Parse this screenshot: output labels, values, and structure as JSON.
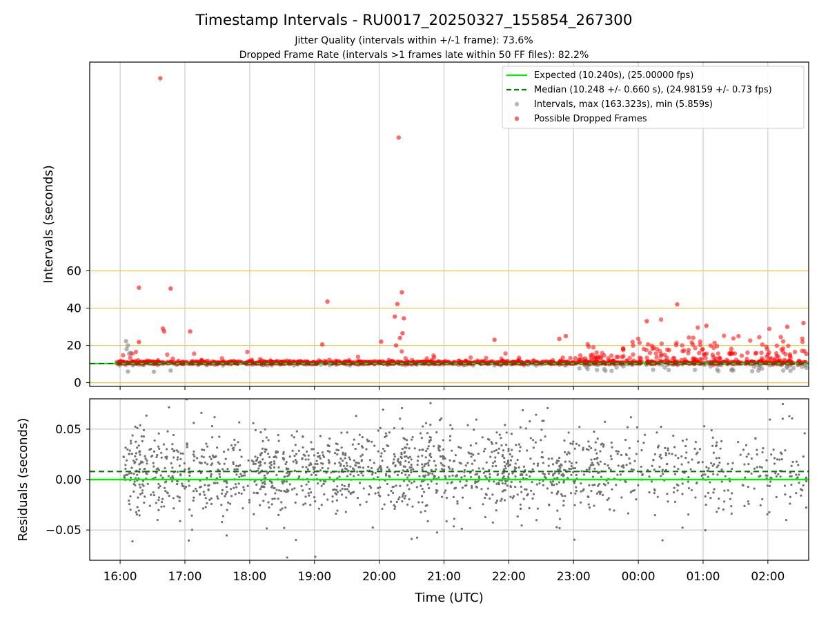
{
  "figure": {
    "title": "Timestamp Intervals - RU0017_20250327_155854_267300",
    "subtitle_1": "Jitter Quality (intervals within +/-1 frame): 73.6%",
    "subtitle_2": "Dropped Frame Rate (intervals >1 frames late within 50 FF files): 82.2%"
  },
  "colors": {
    "expected": "#00ee00",
    "median": "#007700",
    "intervals": "#808080",
    "dropped": "#ff0000",
    "hline": "#f5c542",
    "grid": "#cccccc",
    "residuals": "#707070"
  },
  "chart_data": [
    {
      "type": "scatter",
      "ylabel": "Intervals (seconds)",
      "ylim": [
        -2,
        172
      ],
      "xlim": [
        -0.47,
        10.63
      ],
      "x_ticks": [
        0,
        1,
        2,
        3,
        4,
        5,
        6,
        7,
        8,
        9,
        10
      ],
      "x_tick_labels": [
        "16:00",
        "17:00",
        "18:00",
        "19:00",
        "20:00",
        "21:00",
        "22:00",
        "23:00",
        "00:00",
        "01:00",
        "02:00"
      ],
      "y_ticks": [
        0,
        20,
        40,
        60
      ],
      "y_tick_labels": [
        "0",
        "20",
        "40",
        "60"
      ],
      "hlines": [
        0,
        20,
        40,
        60
      ],
      "grid": "vertical",
      "legend_position": "top-right",
      "expected": 10.24,
      "median": 10.248,
      "legend": {
        "expected": "Expected (10.240s), (25.00000 fps)",
        "median": "Median (10.248 +/- 0.660 s), (24.98159 +/- 0.73 fps)",
        "intervals": "Intervals, max (163.323s), min (5.859s)",
        "dropped": "Possible Dropped Frames"
      },
      "dropped_outliers": [
        {
          "x": 0.62,
          "y": 163.3
        },
        {
          "x": 4.3,
          "y": 131.5
        },
        {
          "x": 0.29,
          "y": 51
        },
        {
          "x": 0.78,
          "y": 50.5
        },
        {
          "x": 4.35,
          "y": 48.5
        },
        {
          "x": 3.2,
          "y": 43.5
        },
        {
          "x": 4.28,
          "y": 42.2
        },
        {
          "x": 8.6,
          "y": 42
        },
        {
          "x": 4.24,
          "y": 35.5
        },
        {
          "x": 4.38,
          "y": 34.5
        },
        {
          "x": 0.66,
          "y": 29
        },
        {
          "x": 0.68,
          "y": 27.5
        },
        {
          "x": 1.08,
          "y": 27.5
        },
        {
          "x": 4.36,
          "y": 26.5
        },
        {
          "x": 4.32,
          "y": 24
        },
        {
          "x": 4.03,
          "y": 22
        },
        {
          "x": 0.29,
          "y": 21.8
        },
        {
          "x": 3.12,
          "y": 20.5
        },
        {
          "x": 4.26,
          "y": 20
        },
        {
          "x": 6.88,
          "y": 25
        },
        {
          "x": 6.78,
          "y": 23.5
        },
        {
          "x": 5.78,
          "y": 23
        },
        {
          "x": 8.13,
          "y": 33
        },
        {
          "x": 9.05,
          "y": 30.5
        },
        {
          "x": 10.55,
          "y": 32
        },
        {
          "x": 10.3,
          "y": 30
        }
      ],
      "interval_outliers": [
        {
          "x": 0.09,
          "y": 22.3
        },
        {
          "x": 0.12,
          "y": 20
        },
        {
          "x": 0.1,
          "y": 18
        },
        {
          "x": 0.16,
          "y": 16
        },
        {
          "x": 0.14,
          "y": 15.5
        },
        {
          "x": 0.12,
          "y": 6
        },
        {
          "x": 0.52,
          "y": 5.9
        },
        {
          "x": 0.78,
          "y": 6.5
        }
      ]
    },
    {
      "type": "scatter",
      "ylabel": "Residuals (seconds)",
      "xlabel": "Time (UTC)",
      "ylim": [
        -0.08,
        0.08
      ],
      "xlim": [
        -0.47,
        10.63
      ],
      "y_ticks": [
        -0.05,
        0,
        0.05
      ],
      "y_tick_labels": [
        "−0.05",
        "0.00",
        "0.05"
      ],
      "x_tick_labels": [
        "16:00",
        "17:00",
        "18:00",
        "19:00",
        "20:00",
        "21:00",
        "22:00",
        "23:00",
        "00:00",
        "01:00",
        "02:00"
      ],
      "grid": "both",
      "expected_line": 0,
      "median_line": 0.008,
      "residual_spread": 0.02
    }
  ]
}
